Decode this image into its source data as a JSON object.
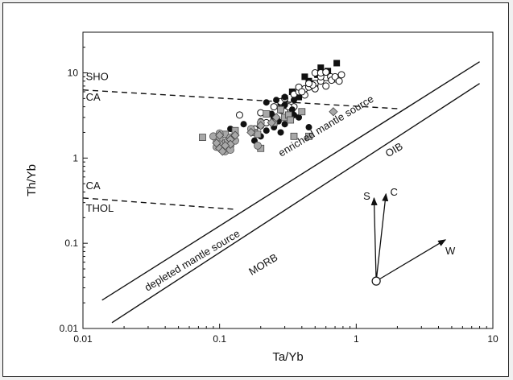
{
  "chart_data": {
    "type": "scatter",
    "title": "",
    "xlabel": "Ta/Yb",
    "ylabel": "Th/Yb",
    "xscale": "log",
    "yscale": "log",
    "xlim": [
      0.01,
      10
    ],
    "ylim": [
      0.01,
      30
    ],
    "grid": false,
    "x_ticks": [
      {
        "value": 0.01,
        "label": "0.01"
      },
      {
        "value": 0.1,
        "label": "0.1"
      },
      {
        "value": 1,
        "label": "1"
      },
      {
        "value": 10,
        "label": "10"
      }
    ],
    "y_ticks": [
      {
        "value": 0.01,
        "label": "0.01"
      },
      {
        "value": 0.1,
        "label": "0.1"
      },
      {
        "value": 1,
        "label": "1"
      },
      {
        "value": 10,
        "label": "10"
      }
    ],
    "boundary_lines": [
      {
        "style": "solid",
        "points": [
          [
            0.0138,
            0.0215
          ],
          [
            8.0,
            13.5
          ]
        ]
      },
      {
        "style": "solid",
        "points": [
          [
            0.0163,
            0.0117
          ],
          [
            8.0,
            7.5
          ]
        ]
      },
      {
        "style": "dashed",
        "points": [
          [
            0.01,
            6.3
          ],
          [
            2.0,
            3.8
          ]
        ]
      },
      {
        "style": "dashed",
        "points": [
          [
            0.01,
            0.34
          ],
          [
            0.13,
            0.25
          ]
        ]
      }
    ],
    "annotations": [
      {
        "text": "SHO",
        "x": 0.0105,
        "y": 8.2
      },
      {
        "text": "CA",
        "x": 0.0105,
        "y": 4.7
      },
      {
        "text": "CA",
        "x": 0.0105,
        "y": 0.43
      },
      {
        "text": "THOL",
        "x": 0.0105,
        "y": 0.235
      },
      {
        "text": "enriched mantle source",
        "x": 0.62,
        "y": 2.2,
        "angle": -31
      },
      {
        "text": "depleted mantle source",
        "x": 0.065,
        "y": 0.058,
        "angle": -31
      },
      {
        "text": "OIB",
        "x": 1.95,
        "y": 1.15,
        "angle": -31
      },
      {
        "text": "MORB",
        "x": 0.215,
        "y": 0.052,
        "angle": -31
      }
    ],
    "vectors": {
      "origin": [
        1.4,
        0.036
      ],
      "arrows": [
        {
          "label": "S",
          "to": [
            1.35,
            0.34
          ]
        },
        {
          "label": "C",
          "to": [
            1.65,
            0.38
          ]
        },
        {
          "label": "W",
          "to": [
            4.5,
            0.11
          ]
        }
      ]
    },
    "series": [
      {
        "marker": "filled-square",
        "color": "#111111",
        "points": [
          [
            0.38,
            5.2
          ],
          [
            0.45,
            8.0
          ],
          [
            0.52,
            9.5
          ],
          [
            0.6,
            8.8
          ],
          [
            0.72,
            13.0
          ],
          [
            0.42,
            9.0
          ],
          [
            0.34,
            6.0
          ],
          [
            0.3,
            5.0
          ],
          [
            0.28,
            4.5
          ],
          [
            0.62,
            10.5
          ],
          [
            0.55,
            11.5
          ],
          [
            0.5,
            7.5
          ]
        ]
      },
      {
        "marker": "open-circle",
        "color": "#111111",
        "points": [
          [
            0.14,
            3.2
          ],
          [
            0.2,
            3.4
          ],
          [
            0.25,
            4.0
          ],
          [
            0.28,
            4.6
          ],
          [
            0.3,
            5.0
          ],
          [
            0.35,
            5.6
          ],
          [
            0.38,
            6.0
          ],
          [
            0.42,
            6.5
          ],
          [
            0.45,
            7.0
          ],
          [
            0.5,
            7.5
          ],
          [
            0.55,
            8.0
          ],
          [
            0.6,
            8.8
          ],
          [
            0.65,
            9.0
          ],
          [
            0.7,
            8.5
          ],
          [
            0.78,
            9.5
          ],
          [
            0.5,
            6.5
          ],
          [
            0.45,
            6.8
          ],
          [
            0.42,
            5.5
          ],
          [
            0.35,
            4.0
          ],
          [
            0.3,
            3.5
          ],
          [
            0.22,
            2.6
          ],
          [
            0.25,
            3.0
          ],
          [
            0.32,
            4.0
          ],
          [
            0.38,
            6.8
          ],
          [
            0.48,
            7.2
          ],
          [
            0.55,
            9.0
          ],
          [
            0.6,
            7.0
          ],
          [
            0.66,
            8.2
          ],
          [
            0.4,
            6.0
          ],
          [
            0.45,
            7.5
          ],
          [
            0.5,
            10.0
          ],
          [
            0.55,
            10.0
          ],
          [
            0.6,
            10.2
          ],
          [
            0.7,
            9.0
          ],
          [
            0.75,
            8.0
          ],
          [
            0.28,
            3.8
          ],
          [
            0.2,
            2.4
          ],
          [
            0.18,
            2.2
          ]
        ]
      },
      {
        "marker": "filled-circle",
        "color": "#111111",
        "points": [
          [
            0.12,
            2.2
          ],
          [
            0.15,
            2.5
          ],
          [
            0.18,
            2.0
          ],
          [
            0.2,
            1.8
          ],
          [
            0.22,
            2.1
          ],
          [
            0.25,
            2.3
          ],
          [
            0.28,
            2.0
          ],
          [
            0.3,
            2.5
          ],
          [
            0.32,
            3.0
          ],
          [
            0.35,
            3.2
          ],
          [
            0.38,
            3.0
          ],
          [
            0.4,
            3.5
          ],
          [
            0.28,
            3.6
          ],
          [
            0.25,
            3.0
          ],
          [
            0.22,
            4.5
          ],
          [
            0.3,
            4.2
          ],
          [
            0.35,
            4.8
          ],
          [
            0.45,
            2.3
          ],
          [
            0.34,
            3.7
          ],
          [
            0.27,
            2.7
          ],
          [
            0.2,
            2.7
          ],
          [
            0.24,
            3.3
          ],
          [
            0.26,
            4.8
          ],
          [
            0.18,
            1.6
          ],
          [
            0.3,
            5.2
          ]
        ]
      },
      {
        "marker": "gray-square",
        "color": "#a8a8a8",
        "points": [
          [
            0.075,
            1.75
          ],
          [
            0.095,
            1.7
          ],
          [
            0.1,
            1.6
          ],
          [
            0.11,
            1.9
          ],
          [
            0.13,
            2.1
          ],
          [
            0.18,
            2.0
          ],
          [
            0.2,
            1.3
          ],
          [
            0.25,
            2.6
          ],
          [
            0.3,
            3.0
          ],
          [
            0.35,
            1.8
          ],
          [
            0.45,
            1.8
          ],
          [
            0.4,
            3.5
          ],
          [
            0.28,
            3.7
          ],
          [
            0.22,
            3.3
          ],
          [
            0.19,
            1.9
          ],
          [
            0.32,
            3.2
          ],
          [
            0.33,
            2.8
          ]
        ]
      },
      {
        "marker": "gray-circle",
        "color": "#a8a8a8",
        "points": [
          [
            0.09,
            1.8
          ],
          [
            0.1,
            1.7
          ],
          [
            0.11,
            1.5
          ],
          [
            0.115,
            1.6
          ],
          [
            0.12,
            1.4
          ],
          [
            0.095,
            1.35
          ],
          [
            0.1,
            1.95
          ],
          [
            0.12,
            1.75
          ],
          [
            0.13,
            1.6
          ],
          [
            0.11,
            1.2
          ],
          [
            0.17,
            2.2
          ],
          [
            0.19,
            1.4
          ],
          [
            0.2,
            2.6
          ],
          [
            0.1,
            1.45
          ],
          [
            0.12,
            1.25
          ]
        ]
      },
      {
        "marker": "gray-diamond",
        "color": "#a8a8a8",
        "points": [
          [
            0.095,
            1.5
          ],
          [
            0.1,
            1.3
          ],
          [
            0.105,
            1.2
          ],
          [
            0.12,
            1.65
          ],
          [
            0.13,
            1.85
          ],
          [
            0.17,
            2.0
          ],
          [
            0.2,
            2.4
          ],
          [
            0.68,
            3.5
          ],
          [
            0.24,
            2.6
          ],
          [
            0.26,
            3.0
          ],
          [
            0.12,
            1.45
          ],
          [
            0.11,
            1.4
          ],
          [
            0.1,
            1.85
          ]
        ]
      }
    ]
  }
}
